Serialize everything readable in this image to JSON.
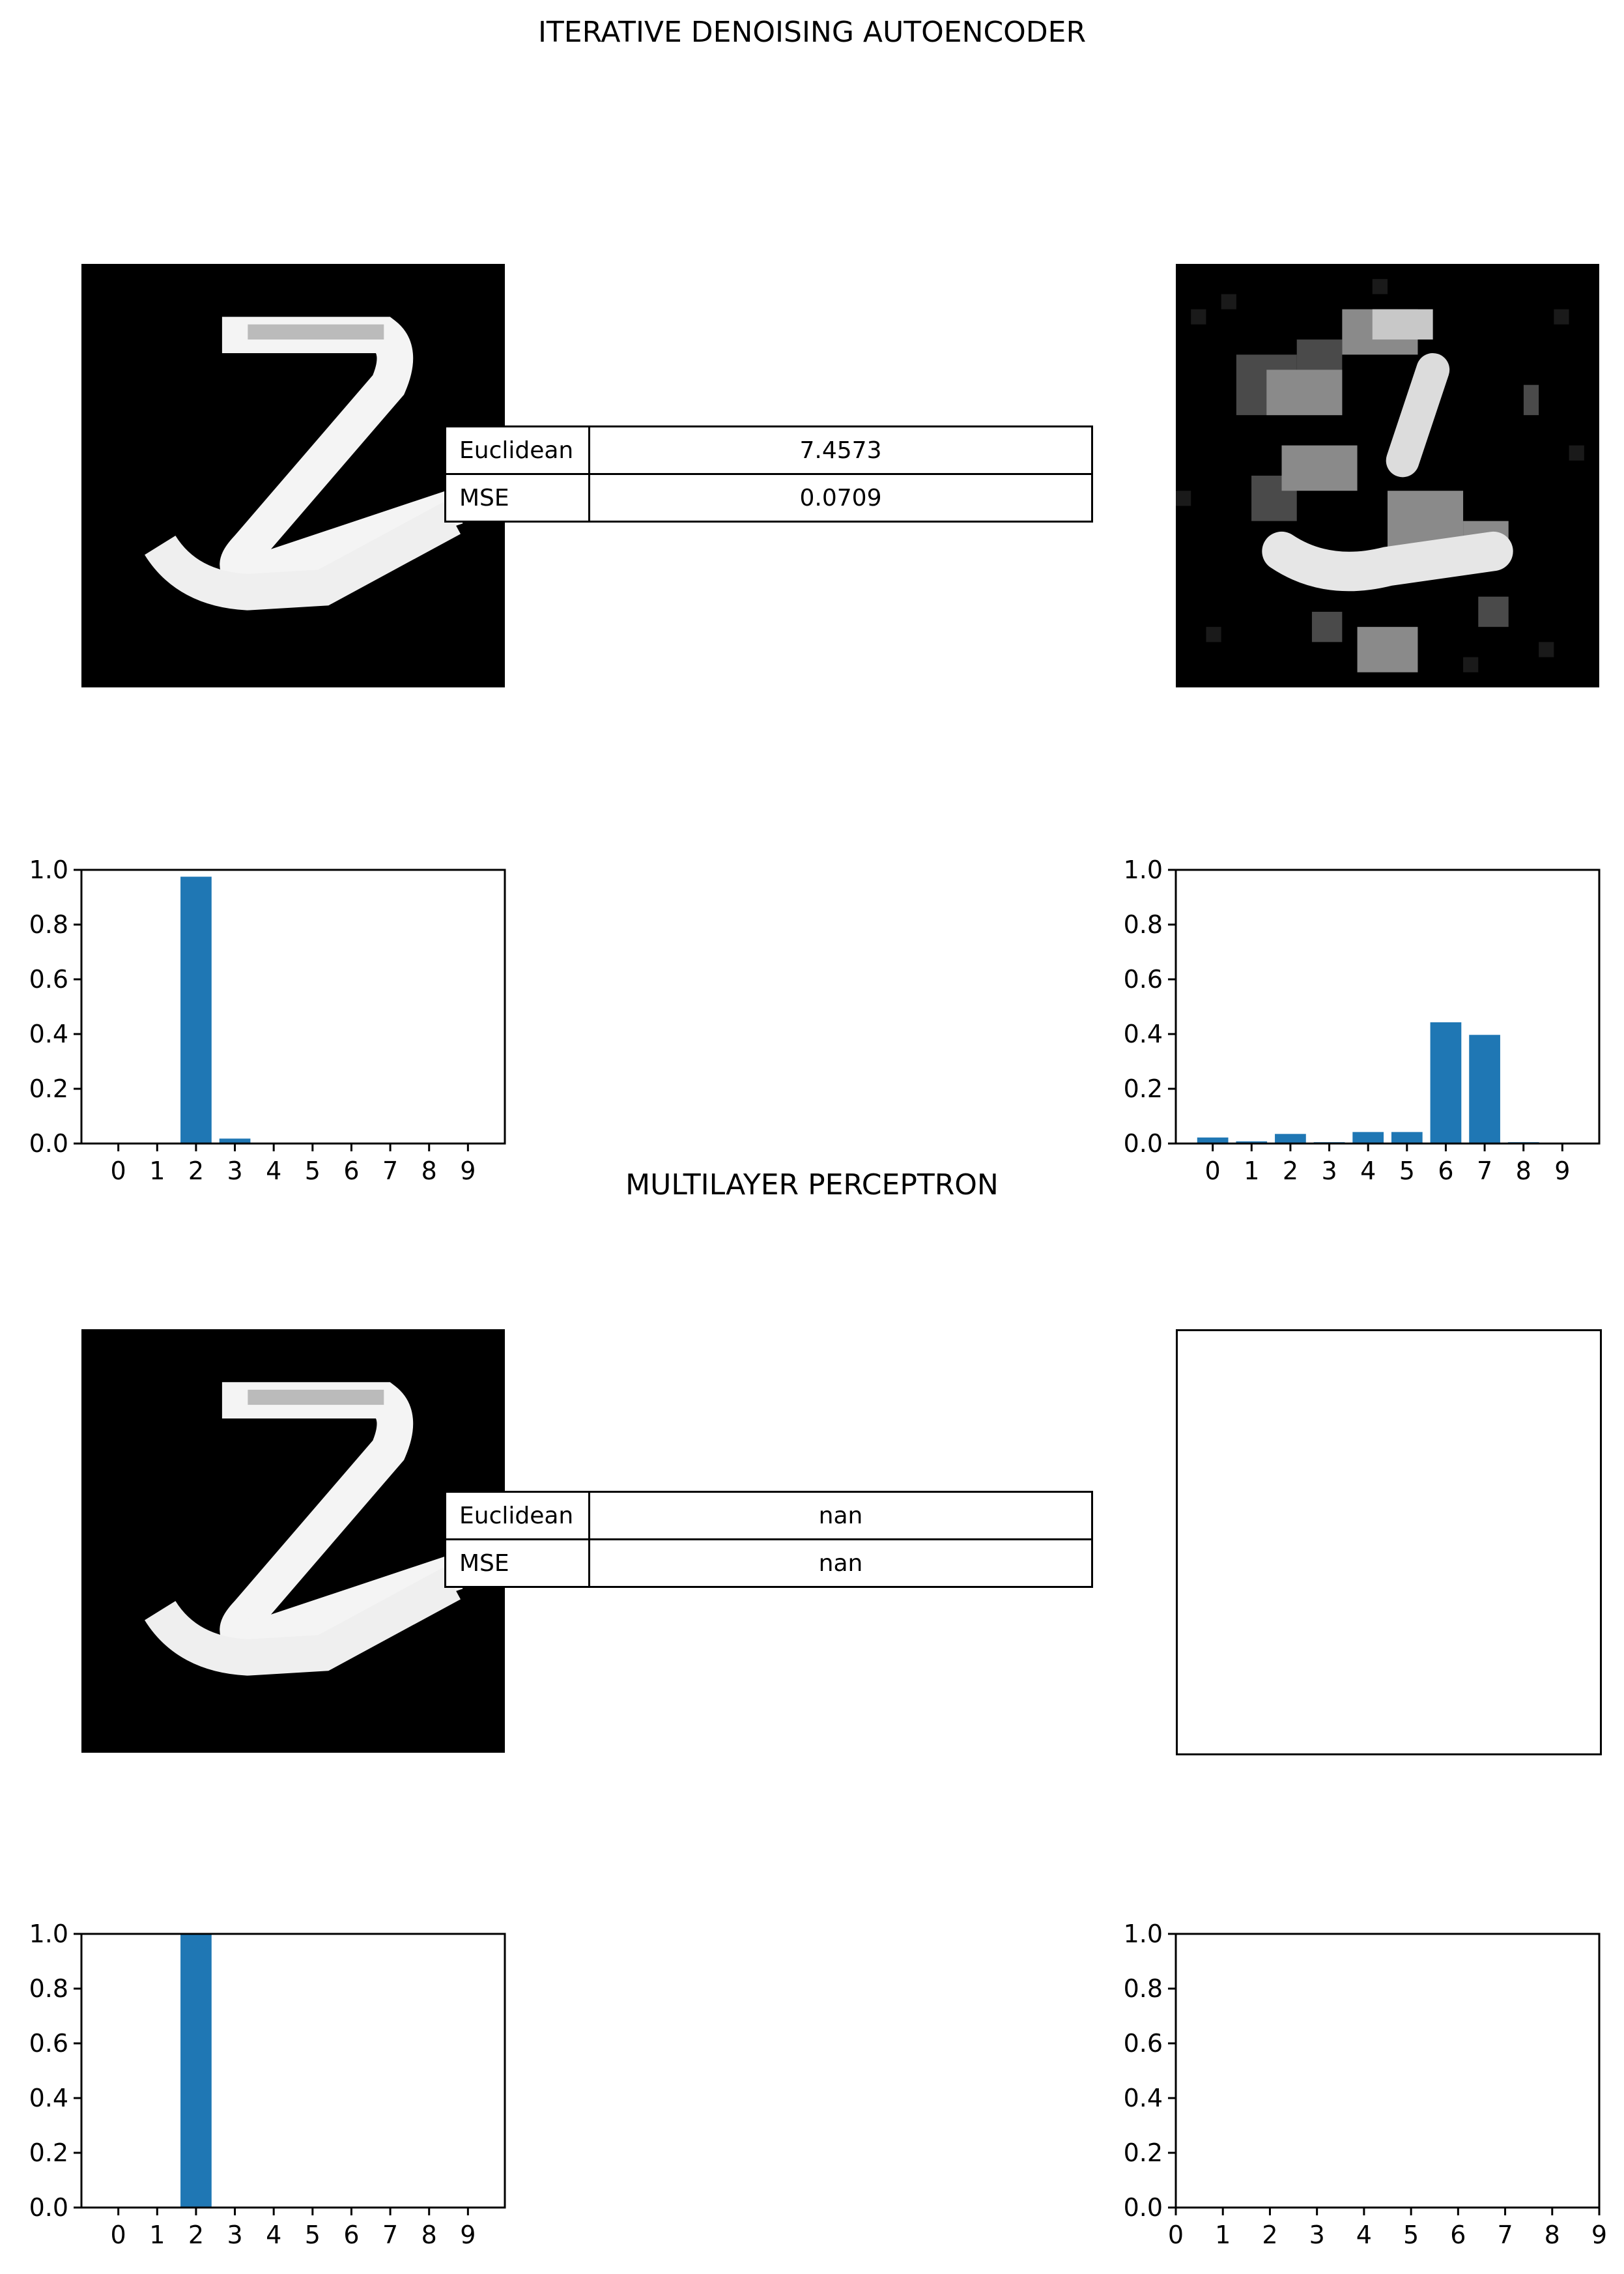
{
  "sections": [
    {
      "title": "ITERATIVE DENOISING AUTOENCODER",
      "metrics": [
        {
          "label": "Euclidean",
          "value": "7.4573"
        },
        {
          "label": "MSE",
          "value": "0.0709"
        }
      ]
    },
    {
      "title": "MULTILAYER PERCEPTRON",
      "metrics": [
        {
          "label": "Euclidean",
          "value": "nan"
        },
        {
          "label": "MSE",
          "value": "nan"
        }
      ]
    }
  ],
  "colors": {
    "bar": "#1f77b4"
  },
  "chart_data": [
    {
      "type": "bar",
      "categories": [
        "0",
        "1",
        "2",
        "3",
        "4",
        "5",
        "6",
        "7",
        "8",
        "9"
      ],
      "values": [
        0.0,
        0.002,
        0.975,
        0.018,
        0.0,
        0.0,
        0.0,
        0.0,
        0.002,
        0.0
      ],
      "ylim": [
        0,
        1.0
      ],
      "yticks": [
        "0.0",
        "0.2",
        "0.4",
        "0.6",
        "0.8",
        "1.0"
      ],
      "xlim": [
        -0.95,
        9.95
      ],
      "xticks": [
        "0",
        "1",
        "2",
        "3",
        "4",
        "5",
        "6",
        "7",
        "8",
        "9"
      ]
    },
    {
      "type": "bar",
      "categories": [
        "0",
        "1",
        "2",
        "3",
        "4",
        "5",
        "6",
        "7",
        "8",
        "9"
      ],
      "values": [
        0.022,
        0.008,
        0.035,
        0.005,
        0.042,
        0.042,
        0.443,
        0.397,
        0.005,
        0.002
      ],
      "ylim": [
        0,
        1.0
      ],
      "yticks": [
        "0.0",
        "0.2",
        "0.4",
        "0.6",
        "0.8",
        "1.0"
      ],
      "xlim": [
        -0.95,
        9.95
      ],
      "xticks": [
        "0",
        "1",
        "2",
        "3",
        "4",
        "5",
        "6",
        "7",
        "8",
        "9"
      ]
    },
    {
      "type": "bar",
      "categories": [
        "0",
        "1",
        "2",
        "3",
        "4",
        "5",
        "6",
        "7",
        "8",
        "9"
      ],
      "values": [
        0.0,
        0.0,
        1.0,
        0.0,
        0.0,
        0.0,
        0.0,
        0.0,
        0.0,
        0.0
      ],
      "ylim": [
        0,
        1.0
      ],
      "yticks": [
        "0.0",
        "0.2",
        "0.4",
        "0.6",
        "0.8",
        "1.0"
      ],
      "xlim": [
        -0.95,
        9.95
      ],
      "xticks": [
        "0",
        "1",
        "2",
        "3",
        "4",
        "5",
        "6",
        "7",
        "8",
        "9"
      ]
    },
    {
      "type": "bar",
      "categories": [],
      "values": [],
      "ylim": [
        0,
        1.0
      ],
      "yticks": [
        "0.0",
        "0.2",
        "0.4",
        "0.6",
        "0.8",
        "1.0"
      ],
      "xlim": [
        0,
        9
      ],
      "xticks": [
        "0",
        "1",
        "2",
        "3",
        "4",
        "5",
        "6",
        "7",
        "8",
        "9"
      ]
    }
  ]
}
